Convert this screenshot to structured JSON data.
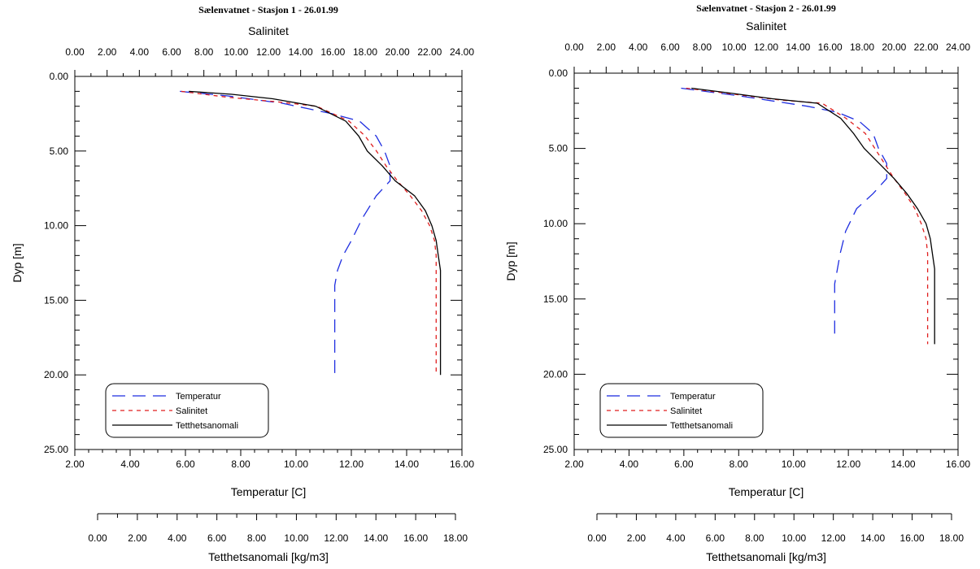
{
  "colors": {
    "temperature": "#1f2ee0",
    "salinity": "#e01f1f",
    "density": "#000000"
  },
  "chart_data": [
    {
      "type": "line",
      "title": "Sælenvatnet - Stasjon 1 - 26.01.99",
      "top_axis_label": "Salinitet",
      "left_axis_label": "Dyp [m]",
      "bottom_axis_label": "Temperatur [C]",
      "extra_axis_label": "Tetthetsanomali [kg/m3]",
      "salinity_axis": {
        "range": [
          0,
          24
        ],
        "ticks": [
          "0.00",
          "2.00",
          "4.00",
          "6.00",
          "8.00",
          "10.00",
          "12.00",
          "14.00",
          "16.00",
          "18.00",
          "20.00",
          "22.00",
          "24.00"
        ]
      },
      "depth_axis": {
        "range": [
          0,
          25
        ],
        "inverted": true,
        "ticks": [
          "0.00",
          "5.00",
          "10.00",
          "15.00",
          "20.00",
          "25.00"
        ]
      },
      "temperature_axis": {
        "range": [
          2,
          16
        ],
        "ticks": [
          "2.00",
          "4.00",
          "6.00",
          "8.00",
          "10.00",
          "12.00",
          "14.00",
          "16.00"
        ]
      },
      "density_axis": {
        "range": [
          0,
          18
        ],
        "ticks": [
          "0.00",
          "2.00",
          "4.00",
          "6.00",
          "8.00",
          "10.00",
          "12.00",
          "14.00",
          "16.00",
          "18.00"
        ]
      },
      "legend": {
        "position": "bottom-left",
        "entries": [
          "Temperatur",
          "Salinitet",
          "Tetthetsanomali"
        ]
      },
      "series": [
        {
          "name": "Temperatur",
          "axis": "temperature",
          "style": "long-dash",
          "points": [
            [
              5.8,
              1
            ],
            [
              7.5,
              1.3
            ],
            [
              9.5,
              1.8
            ],
            [
              11.3,
              2.5
            ],
            [
              12.3,
              3
            ],
            [
              12.9,
              4
            ],
            [
              13.2,
              5
            ],
            [
              13.4,
              6
            ],
            [
              13.4,
              7
            ],
            [
              12.9,
              8
            ],
            [
              12.4,
              9.5
            ],
            [
              12.0,
              11
            ],
            [
              11.7,
              12
            ],
            [
              11.5,
              13
            ],
            [
              11.4,
              14
            ],
            [
              11.4,
              17
            ],
            [
              11.4,
              20
            ]
          ]
        },
        {
          "name": "Salinitet",
          "axis": "salinity",
          "style": "short-dash",
          "points": [
            [
              6.6,
              1
            ],
            [
              9.5,
              1.4
            ],
            [
              12.5,
              1.7
            ],
            [
              15.0,
              2
            ],
            [
              17.0,
              3
            ],
            [
              18.0,
              4
            ],
            [
              18.7,
              5
            ],
            [
              19.3,
              6
            ],
            [
              20.0,
              7
            ],
            [
              20.8,
              8
            ],
            [
              21.5,
              9
            ],
            [
              22.0,
              10
            ],
            [
              22.3,
              11
            ],
            [
              22.4,
              12
            ],
            [
              22.4,
              13
            ],
            [
              22.4,
              15
            ],
            [
              22.4,
              18
            ],
            [
              22.4,
              20
            ]
          ]
        },
        {
          "name": "Tetthetsanomali",
          "axis": "density",
          "style": "solid",
          "points": [
            [
              5.3,
              1
            ],
            [
              7.3,
              1.2
            ],
            [
              9.2,
              1.5
            ],
            [
              11.2,
              2
            ],
            [
              12.6,
              3
            ],
            [
              13.2,
              4
            ],
            [
              13.6,
              5
            ],
            [
              14.3,
              6
            ],
            [
              14.9,
              7
            ],
            [
              15.8,
              8
            ],
            [
              16.3,
              9
            ],
            [
              16.6,
              10
            ],
            [
              16.8,
              11
            ],
            [
              16.9,
              12
            ],
            [
              17.0,
              13
            ],
            [
              17.0,
              14
            ],
            [
              17.0,
              17
            ],
            [
              17.0,
              20
            ]
          ]
        }
      ]
    },
    {
      "type": "line",
      "title": "Sælenvatnet - Stasjon 2 - 26.01.99",
      "top_axis_label": "Salinitet",
      "left_axis_label": "Dyp [m]",
      "bottom_axis_label": "Temperatur [C]",
      "extra_axis_label": "Tetthetsanomali [kg/m3]",
      "salinity_axis": {
        "range": [
          0,
          24
        ],
        "ticks": [
          "0.00",
          "2.00",
          "4.00",
          "6.00",
          "8.00",
          "10.00",
          "12.00",
          "14.00",
          "16.00",
          "18.00",
          "20.00",
          "22.00",
          "24.00"
        ]
      },
      "depth_axis": {
        "range": [
          0,
          25
        ],
        "inverted": true,
        "ticks": [
          "0.00",
          "5.00",
          "10.00",
          "15.00",
          "20.00",
          "25.00"
        ]
      },
      "temperature_axis": {
        "range": [
          2,
          16
        ],
        "ticks": [
          "2.00",
          "4.00",
          "6.00",
          "8.00",
          "10.00",
          "12.00",
          "14.00",
          "16.00"
        ]
      },
      "density_axis": {
        "range": [
          0,
          18
        ],
        "ticks": [
          "0.00",
          "2.00",
          "4.00",
          "6.00",
          "8.00",
          "10.00",
          "12.00",
          "14.00",
          "16.00",
          "18.00"
        ]
      },
      "legend": {
        "position": "bottom-left",
        "entries": [
          "Temperatur",
          "Salinitet",
          "Tetthetsanomali"
        ]
      },
      "series": [
        {
          "name": "Temperatur",
          "axis": "temperature",
          "style": "long-dash",
          "points": [
            [
              5.9,
              1
            ],
            [
              8.0,
              1.5
            ],
            [
              10.5,
              2.2
            ],
            [
              11.6,
              2.6
            ],
            [
              12.4,
              3.2
            ],
            [
              12.9,
              4
            ],
            [
              13.1,
              5
            ],
            [
              13.4,
              6
            ],
            [
              13.4,
              7
            ],
            [
              12.9,
              8
            ],
            [
              12.3,
              9
            ],
            [
              11.9,
              10.5
            ],
            [
              11.7,
              12
            ],
            [
              11.6,
              13
            ],
            [
              11.5,
              14
            ],
            [
              11.5,
              16
            ],
            [
              11.5,
              17.3
            ]
          ]
        },
        {
          "name": "Salinitet",
          "axis": "salinity",
          "style": "short-dash",
          "points": [
            [
              7.0,
              1
            ],
            [
              10.0,
              1.4
            ],
            [
              13.0,
              1.8
            ],
            [
              15.5,
              2
            ],
            [
              17.0,
              3
            ],
            [
              18.2,
              4
            ],
            [
              18.8,
              5
            ],
            [
              19.4,
              6
            ],
            [
              20.0,
              7
            ],
            [
              20.7,
              8
            ],
            [
              21.3,
              9
            ],
            [
              21.7,
              10
            ],
            [
              22.0,
              11
            ],
            [
              22.1,
              12
            ],
            [
              22.1,
              14
            ],
            [
              22.1,
              16
            ],
            [
              22.1,
              18
            ]
          ]
        },
        {
          "name": "Tetthetsanomali",
          "axis": "density",
          "style": "solid",
          "points": [
            [
              5.5,
              1
            ],
            [
              7.2,
              1.3
            ],
            [
              9.3,
              1.7
            ],
            [
              11.4,
              2
            ],
            [
              12.5,
              3
            ],
            [
              13.1,
              4
            ],
            [
              13.6,
              5
            ],
            [
              14.3,
              6
            ],
            [
              15.0,
              7
            ],
            [
              15.6,
              8
            ],
            [
              16.1,
              9
            ],
            [
              16.5,
              10
            ],
            [
              16.7,
              11
            ],
            [
              16.8,
              12
            ],
            [
              16.9,
              13
            ],
            [
              16.9,
              14
            ],
            [
              16.9,
              16
            ],
            [
              16.9,
              18
            ]
          ]
        }
      ]
    }
  ]
}
